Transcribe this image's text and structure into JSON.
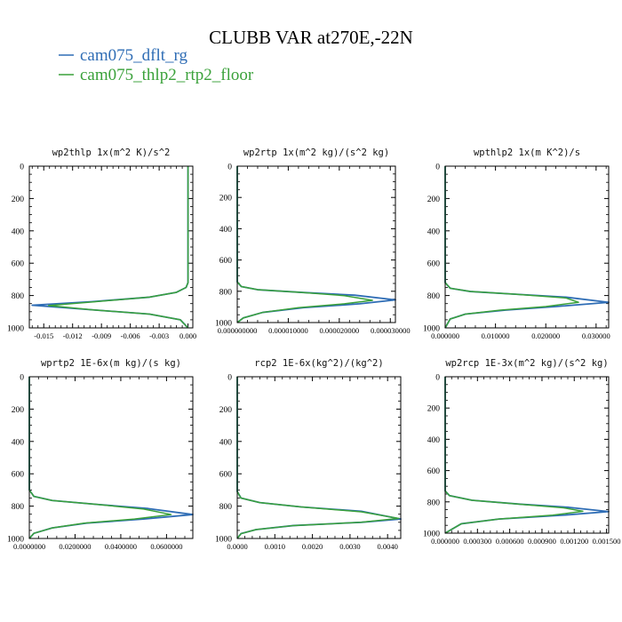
{
  "title": "CLUBB VAR at270E,-22N",
  "legend": [
    {
      "label": "cam075_dflt_rg",
      "color": "#2f6db5",
      "dash": "solid"
    },
    {
      "label": "cam075_thlp2_rtp2_floor",
      "color": "#3aa13a",
      "dash": "solid"
    }
  ],
  "chart_data": [
    {
      "type": "line",
      "title": "wp2thlp   1x(m^2 K)/s^2",
      "xlim": [
        -0.0165,
        0.0005
      ],
      "ylim": [
        1000,
        0
      ],
      "xticks": [
        -0.015,
        -0.012,
        -0.009,
        -0.006,
        -0.003,
        0.0
      ],
      "xticklabels": [
        "-0.015",
        "-0.012",
        "-0.009",
        "-0.006",
        "-0.003",
        "0.000"
      ],
      "yticks": [
        0,
        200,
        400,
        600,
        800,
        1000
      ],
      "series": [
        {
          "name": "cam075_dflt_rg",
          "color": "#2f6db5",
          "dash": "solid",
          "x": [
            0,
            0,
            0,
            -0.0002,
            -0.0012,
            -0.004,
            -0.01,
            -0.0162,
            -0.01,
            -0.004,
            -0.0008,
            0
          ],
          "y": [
            0,
            400,
            720,
            750,
            780,
            810,
            838,
            860,
            888,
            915,
            950,
            1000
          ]
        },
        {
          "name": "cam075_thlp2_rtp2_floor",
          "color": "#3aa13a",
          "dash": "solid",
          "x": [
            0,
            0,
            0,
            -0.0002,
            -0.0012,
            -0.004,
            -0.01,
            -0.0145,
            -0.01,
            -0.004,
            -0.0008,
            0
          ],
          "y": [
            0,
            400,
            720,
            750,
            780,
            810,
            840,
            862,
            888,
            915,
            950,
            1000
          ]
        }
      ]
    },
    {
      "type": "line",
      "title": "wp2rtp   1x(m^2 kg)/(s^2 kg)",
      "xlim": [
        0,
        3.1e-05
      ],
      "ylim": [
        1000,
        0
      ],
      "xticks": [
        0,
        1e-05,
        2e-05,
        3e-05
      ],
      "xticklabels": [
        "0.000000000",
        "0.000010000",
        "0.000020000",
        "0.000030000"
      ],
      "yticks": [
        0,
        200,
        400,
        600,
        800,
        1000
      ],
      "series": [
        {
          "name": "cam075_dflt_rg",
          "color": "#2f6db5",
          "dash": "solid",
          "x": [
            0,
            0,
            0,
            8e-07,
            4e-06,
            1.3e-05,
            2.3e-05,
            3.1e-05,
            2.4e-05,
            1.3e-05,
            5e-06,
            1.2e-06,
            0
          ],
          "y": [
            0,
            400,
            740,
            770,
            790,
            808,
            825,
            855,
            880,
            905,
            935,
            970,
            1000
          ]
        },
        {
          "name": "cam075_thlp2_rtp2_floor",
          "color": "#3aa13a",
          "dash": "solid",
          "x": [
            0,
            0,
            0,
            8e-07,
            4e-06,
            1.3e-05,
            2.1e-05,
            2.65e-05,
            2.1e-05,
            1.2e-05,
            5e-06,
            1.2e-06,
            0
          ],
          "y": [
            0,
            400,
            740,
            770,
            790,
            808,
            828,
            858,
            880,
            905,
            935,
            970,
            1000
          ]
        }
      ]
    },
    {
      "type": "line",
      "title": "wpthlp2   1x(m K^2)/s",
      "xlim": [
        0,
        0.0325
      ],
      "ylim": [
        1000,
        0
      ],
      "xticks": [
        0,
        0.01,
        0.02,
        0.03
      ],
      "xticklabels": [
        "0.000000",
        "0.010000",
        "0.020000",
        "0.030000"
      ],
      "yticks": [
        0,
        200,
        400,
        600,
        800,
        1000
      ],
      "series": [
        {
          "name": "cam075_dflt_rg",
          "color": "#2f6db5",
          "dash": "solid",
          "x": [
            0,
            0,
            0,
            0.001,
            0.005,
            0.014,
            0.024,
            0.0325,
            0.022,
            0.012,
            0.004,
            0.001,
            0
          ],
          "y": [
            0,
            400,
            720,
            755,
            775,
            792,
            810,
            842,
            868,
            890,
            915,
            945,
            1000
          ]
        },
        {
          "name": "cam075_thlp2_rtp2_floor",
          "color": "#3aa13a",
          "dash": "solid",
          "x": [
            0,
            0,
            0,
            0.001,
            0.005,
            0.014,
            0.024,
            0.0265,
            0.02,
            0.011,
            0.004,
            0.001,
            0
          ],
          "y": [
            0,
            400,
            720,
            755,
            775,
            792,
            815,
            842,
            868,
            890,
            915,
            945,
            1000
          ]
        }
      ]
    },
    {
      "type": "line",
      "title": "wprtp2   1E-6x(m kg)/(s kg)",
      "xlim": [
        0,
        0.0715
      ],
      "ylim": [
        1000,
        0
      ],
      "xticks": [
        0,
        0.02,
        0.04,
        0.06
      ],
      "xticklabels": [
        "0.0000000",
        "0.0200000",
        "0.0400000",
        "0.0600000"
      ],
      "yticks": [
        0,
        200,
        400,
        600,
        800,
        1000
      ],
      "series": [
        {
          "name": "cam075_dflt_rg",
          "color": "#2f6db5",
          "dash": "solid",
          "x": [
            0,
            0,
            0,
            0.002,
            0.01,
            0.03,
            0.052,
            0.0715,
            0.05,
            0.025,
            0.01,
            0.002,
            0
          ],
          "y": [
            0,
            400,
            700,
            740,
            765,
            790,
            815,
            852,
            880,
            905,
            935,
            968,
            1000
          ]
        },
        {
          "name": "cam075_thlp2_rtp2_floor",
          "color": "#3aa13a",
          "dash": "solid",
          "x": [
            0,
            0,
            0,
            0.002,
            0.01,
            0.03,
            0.05,
            0.062,
            0.046,
            0.024,
            0.01,
            0.002,
            0
          ],
          "y": [
            0,
            400,
            700,
            740,
            765,
            790,
            818,
            852,
            880,
            905,
            935,
            968,
            1000
          ]
        }
      ]
    },
    {
      "type": "line",
      "title": "rcp2   1E-6x(kg^2)/(kg^2)",
      "xlim": [
        0,
        0.00435
      ],
      "ylim": [
        1000,
        0
      ],
      "xticks": [
        0,
        0.001,
        0.002,
        0.003,
        0.004
      ],
      "xticklabels": [
        "0.0000",
        "0.0010",
        "0.0020",
        "0.0030",
        "0.0040"
      ],
      "yticks": [
        0,
        200,
        400,
        600,
        800,
        1000
      ],
      "series": [
        {
          "name": "cam075_dflt_rg",
          "color": "#2f6db5",
          "dash": "solid",
          "x": [
            0,
            0,
            0,
            0.0001,
            0.0006,
            0.0017,
            0.0033,
            0.00435,
            0.0033,
            0.0015,
            0.0005,
            0.0001,
            0
          ],
          "y": [
            0,
            400,
            710,
            750,
            778,
            805,
            832,
            880,
            900,
            920,
            945,
            970,
            1000
          ]
        },
        {
          "name": "cam075_thlp2_rtp2_floor",
          "color": "#3aa13a",
          "dash": "solid",
          "x": [
            0,
            0,
            0,
            0.0001,
            0.0006,
            0.0017,
            0.0033,
            0.0043,
            0.0033,
            0.0015,
            0.0005,
            0.0001,
            0
          ],
          "y": [
            0,
            400,
            710,
            750,
            778,
            805,
            835,
            876,
            900,
            920,
            945,
            970,
            1000
          ]
        }
      ]
    },
    {
      "type": "line",
      "title": "wp2rcp   1E-3x(m^2 kg)/(s^2 kg)",
      "xlim": [
        0,
        0.00152
      ],
      "ylim": [
        1000,
        0
      ],
      "xticks": [
        0,
        0.0003,
        0.0006,
        0.0009,
        0.0012,
        0.0015
      ],
      "xticklabels": [
        "0.000000",
        "0.000300",
        "0.000600",
        "0.000900",
        "0.001200",
        "0.001500"
      ],
      "yticks": [
        0,
        200,
        400,
        600,
        800,
        1000
      ],
      "series": [
        {
          "name": "cam075_dflt_rg",
          "color": "#2f6db5",
          "dash": "solid",
          "x": [
            0,
            0,
            0,
            4e-05,
            0.00025,
            0.0007,
            0.00115,
            0.00152,
            0.0011,
            0.0005,
            0.00015,
            0
          ],
          "y": [
            0,
            400,
            730,
            760,
            790,
            815,
            835,
            862,
            885,
            910,
            940,
            1000
          ]
        },
        {
          "name": "cam075_thlp2_rtp2_floor",
          "color": "#3aa13a",
          "dash": "solid",
          "x": [
            0,
            0,
            0,
            4e-05,
            0.00025,
            0.0007,
            0.0011,
            0.00128,
            0.001,
            0.0005,
            0.00015,
            0
          ],
          "y": [
            0,
            400,
            730,
            760,
            790,
            815,
            838,
            860,
            885,
            910,
            940,
            1000
          ]
        }
      ]
    }
  ]
}
